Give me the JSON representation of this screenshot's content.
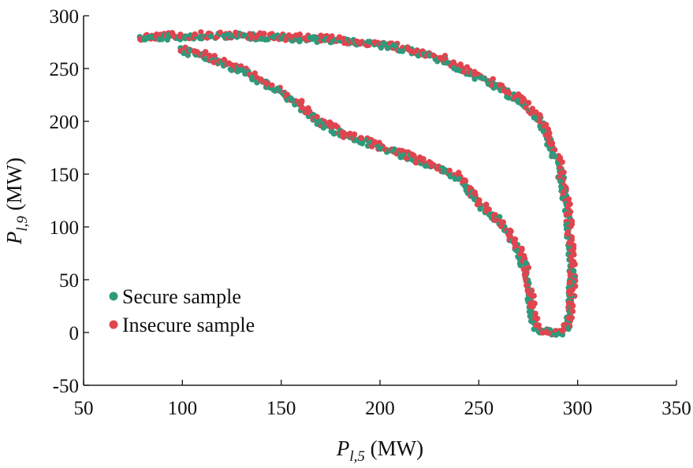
{
  "chart_data": {
    "type": "scatter",
    "title": "",
    "xlabel": {
      "symbol": "P",
      "subscript": "l,5",
      "unit": " (MW)"
    },
    "ylabel": {
      "symbol": "P",
      "subscript": "l,9",
      "unit": " (MW)"
    },
    "xlim": [
      50,
      350
    ],
    "ylim": [
      -50,
      300
    ],
    "xticks": [
      50,
      100,
      150,
      200,
      250,
      300,
      350
    ],
    "yticks": [
      -50,
      0,
      50,
      100,
      150,
      200,
      250,
      300
    ],
    "grid": false,
    "legend_position": "bottom-left",
    "series": [
      {
        "name": "Secure sample",
        "color": "#2e9a7c",
        "shape": "ring-boundary"
      },
      {
        "name": "Insecure sample",
        "color": "#e0454f",
        "shape": "ring-boundary"
      }
    ],
    "boundary": {
      "upper_branch": [
        [
          78,
          279
        ],
        [
          100,
          280
        ],
        [
          125,
          281
        ],
        [
          150,
          279
        ],
        [
          175,
          277
        ],
        [
          200,
          272
        ],
        [
          215,
          267
        ],
        [
          230,
          259
        ],
        [
          245,
          245
        ],
        [
          260,
          232
        ],
        [
          270,
          220
        ],
        [
          280,
          203
        ],
        [
          285,
          183
        ],
        [
          290,
          160
        ],
        [
          293,
          135
        ],
        [
          295,
          110
        ],
        [
          296,
          80
        ],
        [
          297,
          50
        ],
        [
          296,
          25
        ],
        [
          295,
          8
        ],
        [
          293,
          0
        ]
      ],
      "lower_branch": [
        [
          100,
          267
        ],
        [
          110,
          262
        ],
        [
          120,
          255
        ],
        [
          130,
          247
        ],
        [
          140,
          237
        ],
        [
          150,
          227
        ],
        [
          160,
          213
        ],
        [
          170,
          198
        ],
        [
          180,
          188
        ],
        [
          190,
          182
        ],
        [
          200,
          175
        ],
        [
          210,
          169
        ],
        [
          220,
          162
        ],
        [
          230,
          155
        ],
        [
          240,
          146
        ],
        [
          245,
          135
        ],
        [
          250,
          121
        ],
        [
          255,
          114
        ],
        [
          260,
          106
        ],
        [
          265,
          93
        ],
        [
          270,
          76
        ],
        [
          273,
          62
        ],
        [
          275,
          45
        ],
        [
          276,
          30
        ],
        [
          277,
          15
        ],
        [
          279,
          5
        ],
        [
          282,
          1
        ],
        [
          288,
          0
        ],
        [
          293,
          0
        ]
      ]
    }
  }
}
